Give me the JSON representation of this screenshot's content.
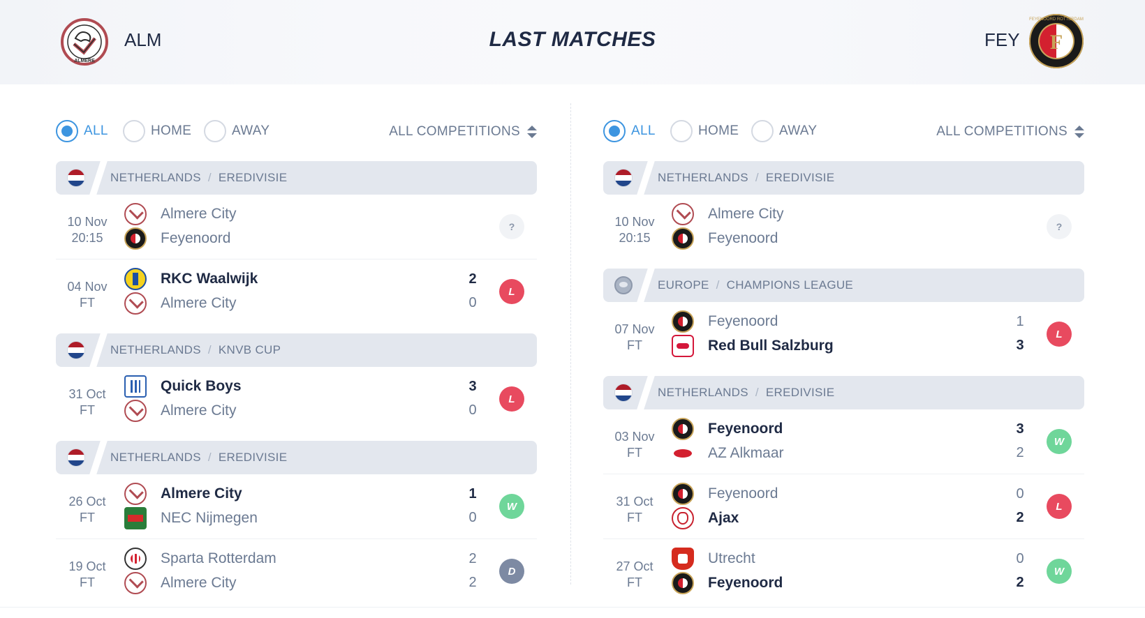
{
  "header": {
    "home_code": "ALM",
    "title": "LAST MATCHES",
    "away_code": "FEY",
    "home_crest_text": "ALMERE",
    "away_crest_text": "FEYENOORD ROTTERDAM"
  },
  "colors": {
    "accent": "#3d95e0",
    "loss": "#e84a5f",
    "win": "#6fd69a",
    "draw": "#7d8aa3",
    "text_dark": "#1f2a44",
    "text_muted": "#6b7a92"
  },
  "panels": [
    {
      "filters": {
        "all": "ALL",
        "home": "HOME",
        "away": "AWAY",
        "selected": "ALL",
        "competition": "ALL COMPETITIONS"
      },
      "groups": [
        {
          "country": "NETHERLANDS",
          "league": "EREDIVISIE",
          "flag": "netherlands-flag",
          "matches": [
            {
              "date": "10 Nov",
              "time": "20:15",
              "team1": "Almere City",
              "logo1": "alm",
              "team2": "Feyenoord",
              "logo2": "fey",
              "score1": "",
              "score2": "",
              "winner": 0,
              "result": "?"
            }
          ]
        },
        {
          "country": "",
          "league": "",
          "flag": "",
          "matches": [
            {
              "date": "04 Nov",
              "time": "FT",
              "team1": "RKC Waalwijk",
              "logo1": "rkc",
              "team2": "Almere City",
              "logo2": "alm",
              "score1": "2",
              "score2": "0",
              "winner": 1,
              "result": "L"
            }
          ]
        },
        {
          "country": "NETHERLANDS",
          "league": "KNVB CUP",
          "flag": "netherlands-flag",
          "matches": [
            {
              "date": "31 Oct",
              "time": "FT",
              "team1": "Quick Boys",
              "logo1": "qb",
              "team2": "Almere City",
              "logo2": "alm",
              "score1": "3",
              "score2": "0",
              "winner": 1,
              "result": "L"
            }
          ]
        },
        {
          "country": "NETHERLANDS",
          "league": "EREDIVISIE",
          "flag": "netherlands-flag",
          "matches": [
            {
              "date": "26 Oct",
              "time": "FT",
              "team1": "Almere City",
              "logo1": "alm",
              "team2": "NEC Nijmegen",
              "logo2": "nec",
              "score1": "1",
              "score2": "0",
              "winner": 1,
              "result": "W"
            },
            {
              "date": "19 Oct",
              "time": "FT",
              "team1": "Sparta Rotterdam",
              "logo1": "spa",
              "team2": "Almere City",
              "logo2": "alm",
              "score1": "2",
              "score2": "2",
              "winner": 0,
              "result": "D"
            }
          ]
        }
      ]
    },
    {
      "filters": {
        "all": "ALL",
        "home": "HOME",
        "away": "AWAY",
        "selected": "ALL",
        "competition": "ALL COMPETITIONS"
      },
      "groups": [
        {
          "country": "NETHERLANDS",
          "league": "EREDIVISIE",
          "flag": "netherlands-flag",
          "matches": [
            {
              "date": "10 Nov",
              "time": "20:15",
              "team1": "Almere City",
              "logo1": "alm",
              "team2": "Feyenoord",
              "logo2": "fey",
              "score1": "",
              "score2": "",
              "winner": 0,
              "result": "?"
            }
          ]
        },
        {
          "country": "EUROPE",
          "league": "CHAMPIONS LEAGUE",
          "flag": "europe-globe",
          "matches": [
            {
              "date": "07 Nov",
              "time": "FT",
              "team1": "Feyenoord",
              "logo1": "fey",
              "team2": "Red Bull Salzburg",
              "logo2": "rbs",
              "score1": "1",
              "score2": "3",
              "winner": 2,
              "result": "L"
            }
          ]
        },
        {
          "country": "NETHERLANDS",
          "league": "EREDIVISIE",
          "flag": "netherlands-flag",
          "matches": [
            {
              "date": "03 Nov",
              "time": "FT",
              "team1": "Feyenoord",
              "logo1": "fey",
              "team2": "AZ Alkmaar",
              "logo2": "az",
              "score1": "3",
              "score2": "2",
              "winner": 1,
              "result": "W"
            },
            {
              "date": "31 Oct",
              "time": "FT",
              "team1": "Feyenoord",
              "logo1": "fey",
              "team2": "Ajax",
              "logo2": "ajx",
              "score1": "0",
              "score2": "2",
              "winner": 2,
              "result": "L"
            },
            {
              "date": "27 Oct",
              "time": "FT",
              "team1": "Utrecht",
              "logo1": "utr",
              "team2": "Feyenoord",
              "logo2": "fey",
              "score1": "0",
              "score2": "2",
              "winner": 2,
              "result": "W"
            }
          ]
        }
      ]
    }
  ]
}
